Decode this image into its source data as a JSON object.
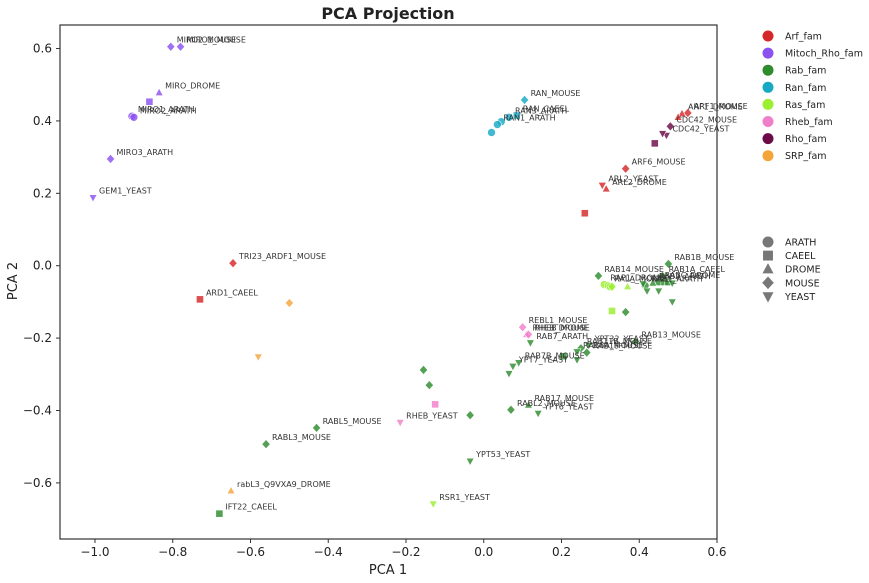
{
  "chart_data": {
    "type": "scatter",
    "title": "PCA Projection",
    "xlabel": "PCA 1",
    "ylabel": "PCA 2",
    "xlim": [
      -1.09,
      0.6
    ],
    "ylim": [
      -0.755,
      0.665
    ],
    "xticks": [
      -1.0,
      -0.8,
      -0.6,
      -0.4,
      -0.2,
      0.0,
      0.2,
      0.4,
      0.6
    ],
    "xtick_labels": [
      "−1.0",
      "−0.8",
      "−0.6",
      "−0.4",
      "−0.2",
      "0.0",
      "0.2",
      "0.4",
      "0.6"
    ],
    "yticks": [
      0.6,
      0.4,
      0.2,
      0.0,
      -0.2,
      -0.4,
      -0.6
    ],
    "ytick_labels": [
      "0.6",
      "0.4",
      "0.2",
      "0.0",
      "−0.2",
      "−0.4",
      "−0.6"
    ],
    "grid": false,
    "legend_placement": "outside-right",
    "color_legend": [
      {
        "name": "Arf_fam",
        "color": "#d62728"
      },
      {
        "name": "Mitoch_Rho_fam",
        "color": "#8c52f0"
      },
      {
        "name": "Rab_fam",
        "color": "#2e8b2e"
      },
      {
        "name": "Ran_fam",
        "color": "#17a9c4"
      },
      {
        "name": "Ras_fam",
        "color": "#9aef2f"
      },
      {
        "name": "Rheb_fam",
        "color": "#f07fc9"
      },
      {
        "name": "Rho_fam",
        "color": "#6b0a47"
      },
      {
        "name": "SRP_fam",
        "color": "#f4a53a"
      }
    ],
    "shape_legend": [
      {
        "name": "ARATH",
        "shape": "circle"
      },
      {
        "name": "CAEEL",
        "shape": "square"
      },
      {
        "name": "DROME",
        "shape": "triangle-up"
      },
      {
        "name": "MOUSE",
        "shape": "diamond"
      },
      {
        "name": "YEAST",
        "shape": "triangle-down"
      }
    ],
    "points": [
      {
        "x": -0.78,
        "y": 0.605,
        "family": "Mitoch_Rho_fam",
        "species": "MOUSE",
        "label": "MIRO1_MOUSE"
      },
      {
        "x": -0.805,
        "y": 0.605,
        "family": "Mitoch_Rho_fam",
        "species": "MOUSE",
        "label": "MIRO2_MOUSE"
      },
      {
        "x": -0.835,
        "y": 0.478,
        "family": "Mitoch_Rho_fam",
        "species": "DROME",
        "label": "MIRO_DROME"
      },
      {
        "x": -0.86,
        "y": 0.453,
        "family": "Mitoch_Rho_fam",
        "species": "CAEEL",
        "label": ""
      },
      {
        "x": -0.905,
        "y": 0.413,
        "family": "Mitoch_Rho_fam",
        "species": "ARATH",
        "label": "MIRO1_ARATH"
      },
      {
        "x": -0.9,
        "y": 0.41,
        "family": "Mitoch_Rho_fam",
        "species": "ARATH",
        "label": "MIRO2_ARATH"
      },
      {
        "x": -0.96,
        "y": 0.295,
        "family": "Mitoch_Rho_fam",
        "species": "MOUSE",
        "label": "MIRO3_ARATH"
      },
      {
        "x": -1.005,
        "y": 0.188,
        "family": "Mitoch_Rho_fam",
        "species": "YEAST",
        "label": "GEM1_YEAST"
      },
      {
        "x": 0.105,
        "y": 0.458,
        "family": "Ran_fam",
        "species": "MOUSE",
        "label": "RAN_MOUSE"
      },
      {
        "x": 0.085,
        "y": 0.415,
        "family": "Ran_fam",
        "species": "CAEEL",
        "label": "RAN_CAEEL"
      },
      {
        "x": 0.065,
        "y": 0.41,
        "family": "Ran_fam",
        "species": "ARATH",
        "label": "RAN3_ARATH"
      },
      {
        "x": 0.045,
        "y": 0.398,
        "family": "Ran_fam",
        "species": "ARATH",
        "label": ""
      },
      {
        "x": 0.035,
        "y": 0.39,
        "family": "Ran_fam",
        "species": "ARATH",
        "label": "RAN1_ARATH"
      },
      {
        "x": 0.02,
        "y": 0.368,
        "family": "Ran_fam",
        "species": "ARATH",
        "label": ""
      },
      {
        "x": 0.525,
        "y": 0.422,
        "family": "Arf_fam",
        "species": "MOUSE",
        "label": "ARF1_MOUSE"
      },
      {
        "x": 0.51,
        "y": 0.42,
        "family": "Arf_fam",
        "species": "DROME",
        "label": "ARF1_DROME"
      },
      {
        "x": 0.5,
        "y": 0.41,
        "family": "Arf_fam",
        "species": "DROME",
        "label": ""
      },
      {
        "x": 0.48,
        "y": 0.385,
        "family": "Rho_fam",
        "species": "MOUSE",
        "label": "CDC42_MOUSE"
      },
      {
        "x": 0.47,
        "y": 0.36,
        "family": "Rho_fam",
        "species": "YEAST",
        "label": "CDC42_YEAST"
      },
      {
        "x": 0.46,
        "y": 0.365,
        "family": "Rho_fam",
        "species": "YEAST",
        "label": ""
      },
      {
        "x": 0.44,
        "y": 0.338,
        "family": "Rho_fam",
        "species": "CAEEL",
        "label": ""
      },
      {
        "x": 0.365,
        "y": 0.268,
        "family": "Arf_fam",
        "species": "MOUSE",
        "label": "ARF6_MOUSE"
      },
      {
        "x": 0.305,
        "y": 0.222,
        "family": "Arf_fam",
        "species": "YEAST",
        "label": "ARL2_YEAST"
      },
      {
        "x": 0.315,
        "y": 0.212,
        "family": "Arf_fam",
        "species": "DROME",
        "label": "ARL2_DROME"
      },
      {
        "x": 0.26,
        "y": 0.145,
        "family": "Arf_fam",
        "species": "CAEEL",
        "label": ""
      },
      {
        "x": -0.645,
        "y": 0.007,
        "family": "Arf_fam",
        "species": "MOUSE",
        "label": "TRI23_ARDF1_MOUSE"
      },
      {
        "x": -0.73,
        "y": -0.093,
        "family": "Arf_fam",
        "species": "CAEEL",
        "label": "ARD1_CAEEL"
      },
      {
        "x": -0.5,
        "y": -0.103,
        "family": "SRP_fam",
        "species": "MOUSE",
        "label": ""
      },
      {
        "x": -0.58,
        "y": -0.252,
        "family": "SRP_fam",
        "species": "YEAST",
        "label": ""
      },
      {
        "x": -0.65,
        "y": -0.622,
        "family": "SRP_fam",
        "species": "DROME",
        "label": "rabL3_Q9VXA9_DROME"
      },
      {
        "x": -0.68,
        "y": -0.685,
        "family": "Rab_fam",
        "species": "CAEEL",
        "label": "IFT22_CAEEL"
      },
      {
        "x": 0.475,
        "y": 0.005,
        "family": "Rab_fam",
        "species": "MOUSE",
        "label": "RAB1B_MOUSE"
      },
      {
        "x": 0.295,
        "y": -0.028,
        "family": "Rab_fam",
        "species": "MOUSE",
        "label": "RAB14_MOUSE"
      },
      {
        "x": 0.46,
        "y": -0.028,
        "family": "Rab_fam",
        "species": "MOUSE",
        "label": "RAB1A_CAEEL"
      },
      {
        "x": 0.45,
        "y": -0.045,
        "family": "Rab_fam",
        "species": "CAEEL",
        "label": "RABC_DROME"
      },
      {
        "x": 0.465,
        "y": -0.045,
        "family": "Rab_fam",
        "species": "CAEEL",
        "label": ""
      },
      {
        "x": 0.475,
        "y": -0.045,
        "family": "Rab_fam",
        "species": "CAEEL",
        "label": ""
      },
      {
        "x": 0.435,
        "y": -0.048,
        "family": "Rab_fam",
        "species": "DROME",
        "label": "RAB2_ARATH"
      },
      {
        "x": 0.415,
        "y": -0.055,
        "family": "Rab_fam",
        "species": "ARATH",
        "label": "RAB1_ARATH"
      },
      {
        "x": 0.41,
        "y": -0.05,
        "family": "Rab_fam",
        "species": "YEAST",
        "label": ""
      },
      {
        "x": 0.485,
        "y": -0.048,
        "family": "Rab_fam",
        "species": "YEAST",
        "label": ""
      },
      {
        "x": 0.42,
        "y": -0.07,
        "family": "Rab_fam",
        "species": "YEAST",
        "label": ""
      },
      {
        "x": 0.45,
        "y": -0.07,
        "family": "Rab_fam",
        "species": "YEAST",
        "label": ""
      },
      {
        "x": 0.485,
        "y": -0.1,
        "family": "Rab_fam",
        "species": "YEAST",
        "label": ""
      },
      {
        "x": 0.31,
        "y": -0.052,
        "family": "Ras_fam",
        "species": "ARATH",
        "label": "RAP1_DROME"
      },
      {
        "x": 0.32,
        "y": -0.055,
        "family": "Ras_fam",
        "species": "ARATH",
        "label": "RALA_MOUSE"
      },
      {
        "x": 0.325,
        "y": -0.058,
        "family": "Ras_fam",
        "species": "ARATH",
        "label": ""
      },
      {
        "x": 0.33,
        "y": -0.058,
        "family": "Ras_fam",
        "species": "MOUSE",
        "label": ""
      },
      {
        "x": 0.37,
        "y": -0.058,
        "family": "Ras_fam",
        "species": "DROME",
        "label": ""
      },
      {
        "x": 0.33,
        "y": -0.125,
        "family": "Ras_fam",
        "species": "CAEEL",
        "label": ""
      },
      {
        "x": 0.365,
        "y": -0.128,
        "family": "Rab_fam",
        "species": "MOUSE",
        "label": ""
      },
      {
        "x": 0.39,
        "y": -0.21,
        "family": "Rab_fam",
        "species": "MOUSE",
        "label": "RAB13_MOUSE"
      },
      {
        "x": 0.1,
        "y": -0.17,
        "family": "Rheb_fam",
        "species": "MOUSE",
        "label": "REBL1_MOUSE"
      },
      {
        "x": 0.11,
        "y": -0.19,
        "family": "Rheb_fam",
        "species": "DROME",
        "label": "RHEB_DROME"
      },
      {
        "x": 0.115,
        "y": -0.19,
        "family": "Rheb_fam",
        "species": "MOUSE",
        "label": "RHEB_MOUSE"
      },
      {
        "x": 0.12,
        "y": -0.213,
        "family": "Rab_fam",
        "species": "YEAST",
        "label": "RAB7_ARATH"
      },
      {
        "x": 0.27,
        "y": -0.22,
        "family": "Rab_fam",
        "species": "YEAST",
        "label": "YPT32_YEAST"
      },
      {
        "x": 0.25,
        "y": -0.228,
        "family": "Rab_fam",
        "species": "MOUSE",
        "label": "RAB11B_MOUSE"
      },
      {
        "x": 0.24,
        "y": -0.238,
        "family": "Rab_fam",
        "species": "YEAST",
        "label": "RAB8A_MOUSE"
      },
      {
        "x": 0.265,
        "y": -0.24,
        "family": "Rab_fam",
        "species": "MOUSE",
        "label": "RAB18_MOUSE"
      },
      {
        "x": 0.205,
        "y": -0.25,
        "family": "Rab_fam",
        "species": "CAEEL",
        "label": ""
      },
      {
        "x": 0.24,
        "y": -0.26,
        "family": "Rab_fam",
        "species": "YEAST",
        "label": ""
      },
      {
        "x": 0.09,
        "y": -0.268,
        "family": "Rab_fam",
        "species": "YEAST",
        "label": "RAB7B_MOUSE"
      },
      {
        "x": 0.075,
        "y": -0.278,
        "family": "Rab_fam",
        "species": "YEAST",
        "label": "YPT7_YEAST"
      },
      {
        "x": 0.065,
        "y": -0.298,
        "family": "Rab_fam",
        "species": "YEAST",
        "label": ""
      },
      {
        "x": -0.155,
        "y": -0.288,
        "family": "Rab_fam",
        "species": "MOUSE",
        "label": ""
      },
      {
        "x": -0.14,
        "y": -0.33,
        "family": "Rab_fam",
        "species": "MOUSE",
        "label": ""
      },
      {
        "x": 0.115,
        "y": -0.385,
        "family": "Rab_fam",
        "species": "DROME",
        "label": "RAB17_MOUSE"
      },
      {
        "x": 0.07,
        "y": -0.398,
        "family": "Rab_fam",
        "species": "MOUSE",
        "label": "RABL2_MOUSE"
      },
      {
        "x": 0.14,
        "y": -0.408,
        "family": "Rab_fam",
        "species": "YEAST",
        "label": "YPT6_YEAST"
      },
      {
        "x": -0.035,
        "y": -0.413,
        "family": "Rab_fam",
        "species": "MOUSE",
        "label": ""
      },
      {
        "x": -0.125,
        "y": -0.383,
        "family": "Rheb_fam",
        "species": "CAEEL",
        "label": ""
      },
      {
        "x": -0.215,
        "y": -0.433,
        "family": "Rheb_fam",
        "species": "YEAST",
        "label": "RHEB_YEAST"
      },
      {
        "x": -0.43,
        "y": -0.448,
        "family": "Rab_fam",
        "species": "MOUSE",
        "label": "RABL5_MOUSE"
      },
      {
        "x": -0.56,
        "y": -0.493,
        "family": "Rab_fam",
        "species": "MOUSE",
        "label": "RABL3_MOUSE"
      },
      {
        "x": -0.035,
        "y": -0.54,
        "family": "Rab_fam",
        "species": "YEAST",
        "label": "YPT53_YEAST"
      },
      {
        "x": -0.13,
        "y": -0.658,
        "family": "Ras_fam",
        "species": "YEAST",
        "label": "RSR1_YEAST"
      }
    ]
  }
}
